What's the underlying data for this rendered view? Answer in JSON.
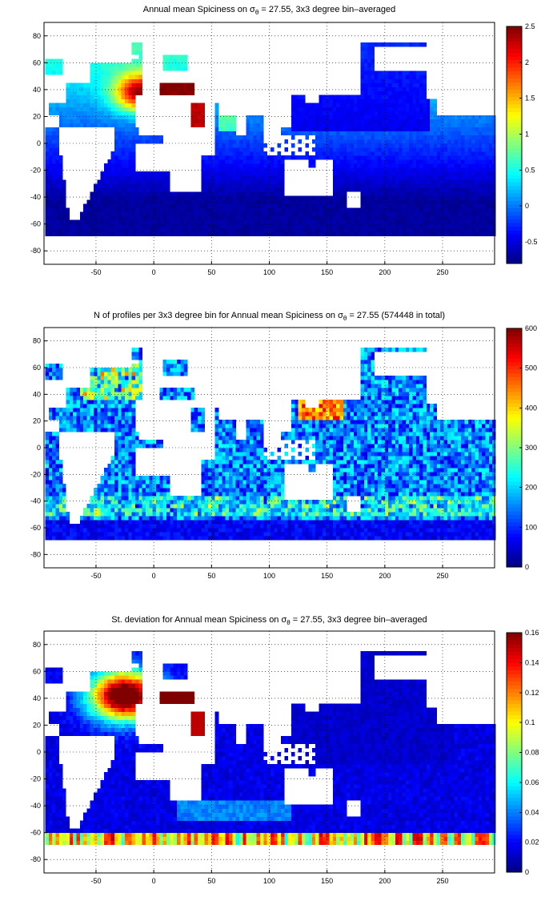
{
  "chart_data": [
    {
      "type": "heatmap",
      "title_prefix": "Annual mean Spiciness on ",
      "title_sigma": "σ",
      "title_sub": "θ",
      "title_suffix": " = 27.55, 3x3 degree bin–averaged",
      "xlim": [
        -95,
        295
      ],
      "ylim": [
        -90,
        90
      ],
      "xticks": [
        -50,
        0,
        50,
        100,
        150,
        200,
        250
      ],
      "yticks": [
        -80,
        -60,
        -40,
        -20,
        0,
        20,
        40,
        60,
        80
      ],
      "colorbar": {
        "min": -0.8,
        "max": 2.5,
        "ticks": [
          -0.5,
          0,
          0.5,
          1,
          1.5,
          2,
          2.5
        ],
        "colormap": "jet"
      },
      "field": "spiciness",
      "grid": true
    },
    {
      "type": "heatmap",
      "title_prefix": "N of profiles per 3x3 degree bin for Annual mean Spiciness on ",
      "title_sigma": "σ",
      "title_sub": "θ",
      "title_suffix": " = 27.55 (574448 in total)",
      "xlim": [
        -95,
        295
      ],
      "ylim": [
        -90,
        90
      ],
      "xticks": [
        -50,
        0,
        50,
        100,
        150,
        200,
        250
      ],
      "yticks": [
        -80,
        -60,
        -40,
        -20,
        0,
        20,
        40,
        60,
        80
      ],
      "colorbar": {
        "min": 0,
        "max": 600,
        "ticks": [
          0,
          100,
          200,
          300,
          400,
          500,
          600
        ],
        "colormap": "jet"
      },
      "field": "count",
      "grid": true
    },
    {
      "type": "heatmap",
      "title_prefix": "St. deviation for Annual mean Spiciness on ",
      "title_sigma": "σ",
      "title_sub": "θ",
      "title_suffix": " = 27.55, 3x3 degree bin–averaged",
      "xlim": [
        -95,
        295
      ],
      "ylim": [
        -90,
        90
      ],
      "xticks": [
        -50,
        0,
        50,
        100,
        150,
        200,
        250
      ],
      "yticks": [
        -80,
        -60,
        -40,
        -20,
        0,
        20,
        40,
        60,
        80
      ],
      "colorbar": {
        "min": 0,
        "max": 0.16,
        "ticks": [
          0,
          0.02,
          0.04,
          0.06,
          0.08,
          0.1,
          0.12,
          0.14,
          0.16
        ],
        "colormap": "jet"
      },
      "field": "stdev",
      "grid": true
    }
  ]
}
